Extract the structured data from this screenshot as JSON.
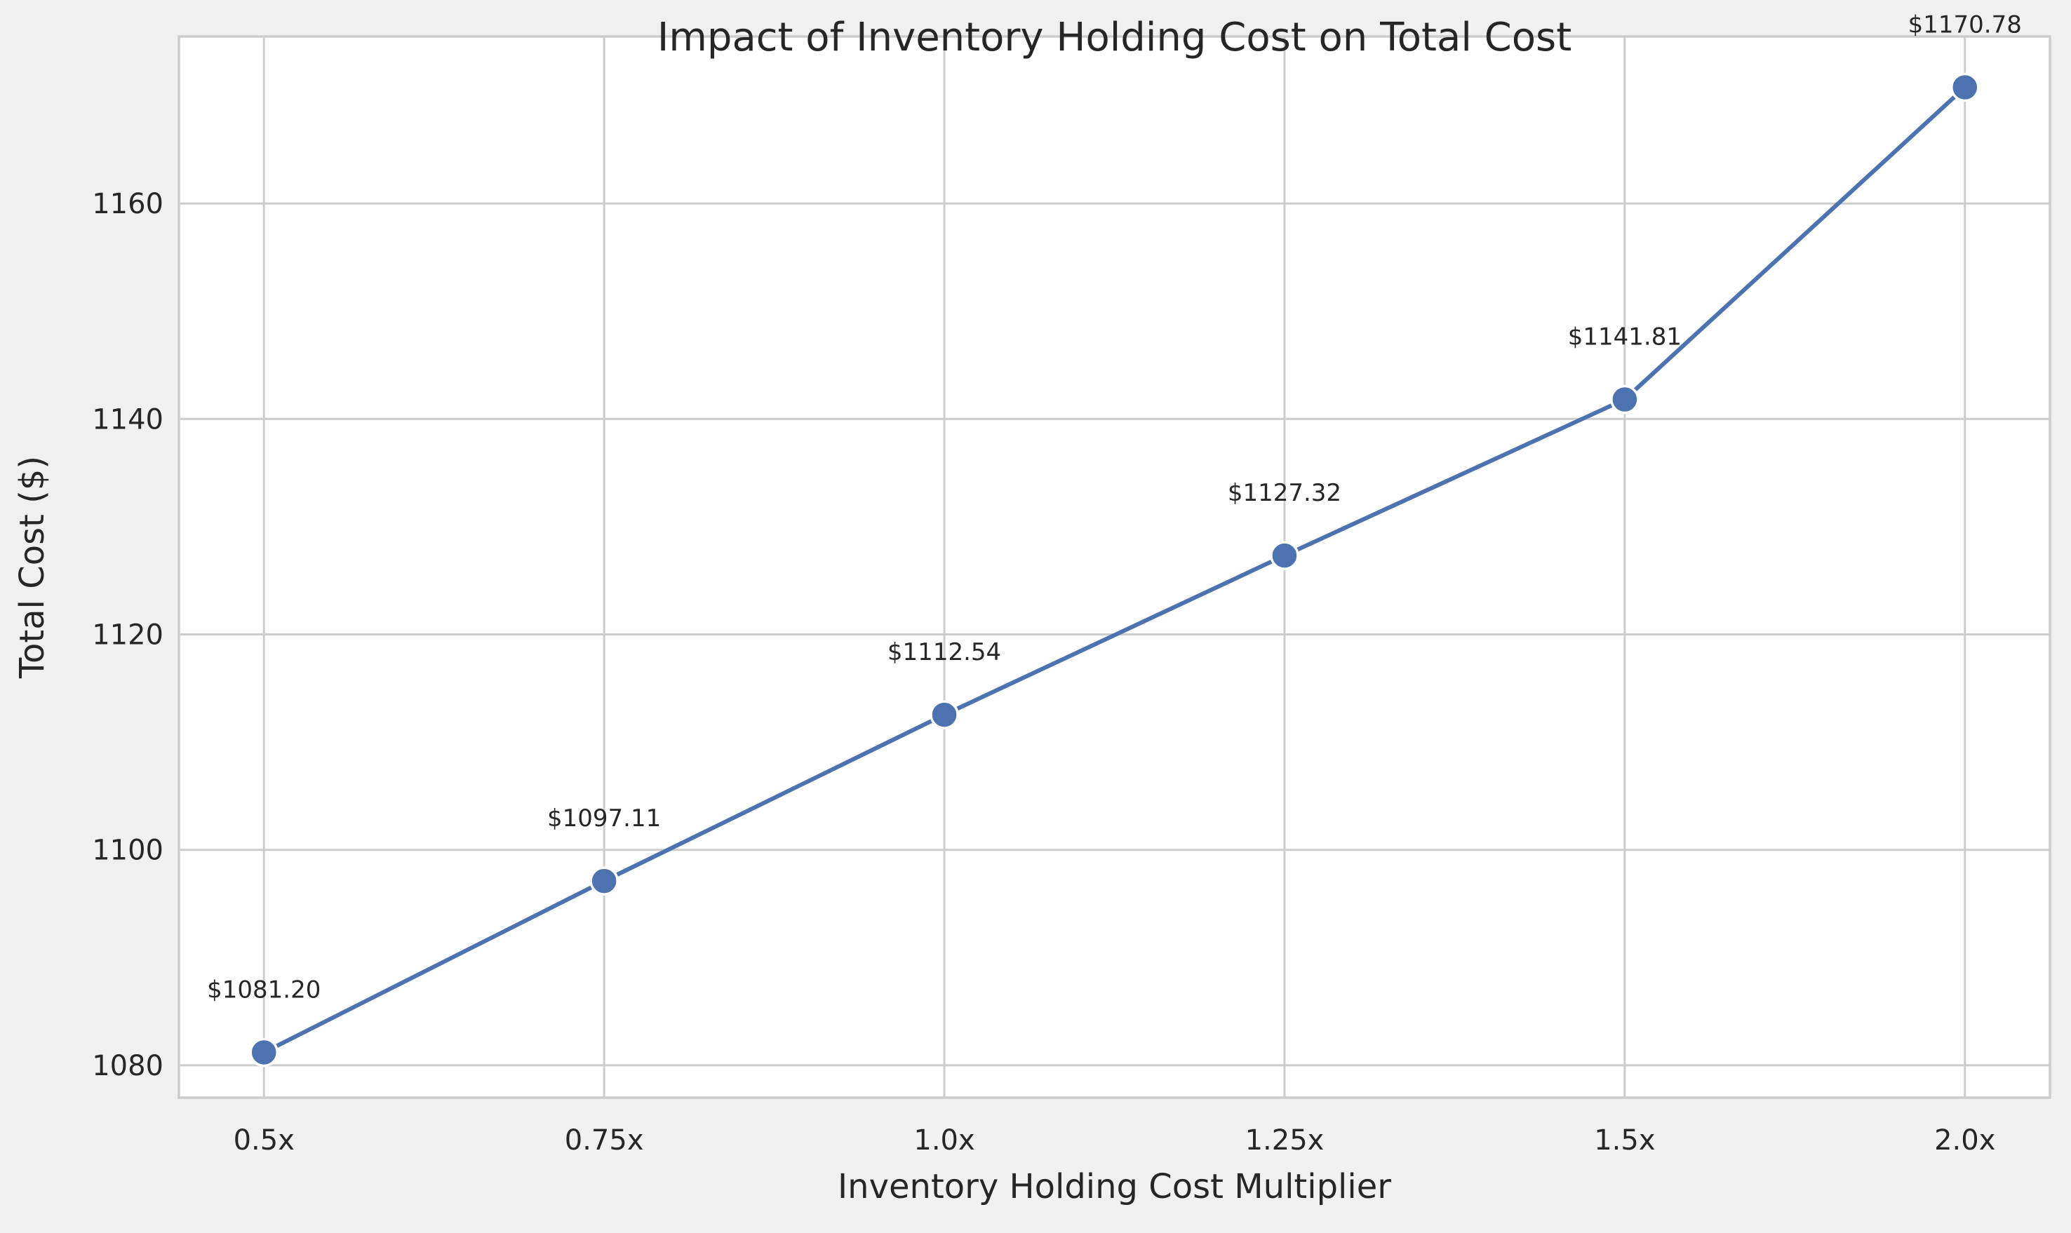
{
  "chart_data": {
    "type": "line",
    "title": "Impact of Inventory Holding Cost on Total Cost",
    "xlabel": "Inventory Holding Cost Multiplier",
    "ylabel": "Total Cost ($)",
    "categories": [
      "0.5x",
      "0.75x",
      "1.0x",
      "1.25x",
      "1.5x",
      "2.0x"
    ],
    "series": [
      {
        "values": [
          1081.2,
          1097.11,
          1112.54,
          1127.32,
          1141.81,
          1170.78
        ],
        "labels": [
          "$1081.20",
          "$1097.11",
          "$1112.54",
          "$1127.32",
          "$1141.81",
          "$1170.78"
        ]
      }
    ],
    "ylim": [
      1077,
      1175.5
    ],
    "yticks": [
      1080,
      1100,
      1120,
      1140,
      1160
    ],
    "grid": true,
    "colors": {
      "line": "#4c72b0",
      "marker": "#4c72b0",
      "marker_edge": "#ffffff",
      "grid": "#cccccc",
      "axes_bg": "#ffffff",
      "figure_bg": "#f0f0f0",
      "spine": "#cccccc",
      "text": "#262626"
    }
  }
}
